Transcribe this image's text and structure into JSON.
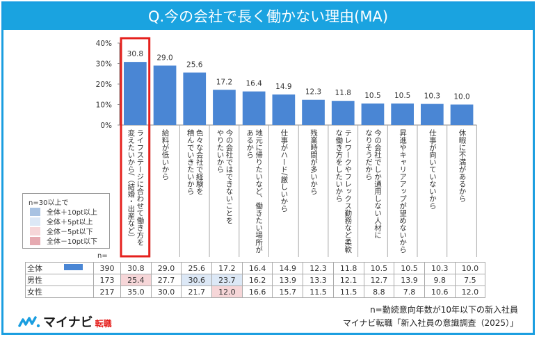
{
  "title": "Q.今の会社で長く働かない理由(MA)",
  "chart_data": {
    "type": "bar",
    "title": "Q.今の会社で長く働かない理由(MA)",
    "xlabel": "",
    "ylabel": "",
    "ylim": [
      0,
      40
    ],
    "yticks": [
      "0%",
      "10%",
      "20%",
      "30%",
      "40%"
    ],
    "ytick_values": [
      0,
      10,
      20,
      30,
      40
    ],
    "grid": false,
    "bar_color": "#4a86d4",
    "highlight_index": 0,
    "highlight_color": "#e5201d",
    "categories": [
      "ライフステージに合わせて働き方を変えたいから/（結婚・出産など）",
      "給料が低いから",
      "色々な会社で経験を積んでいきたいから",
      "今の会社ではできないことをやりたいから",
      "地元に帰りたいなど、働きたい場所があるから",
      "仕事がハード/厳しいから",
      "残業時間が多いから",
      "テレワークやフレックス勤務など柔軟な働き方をしたいから",
      "今の会社でしか通用しない人材になりそうだから",
      "昇進やキャリアアップが望めないから",
      "仕事が向いていないから",
      "休暇に不満があるから"
    ],
    "category_lines": [
      [
        "ライフステージに合わせて働き方を",
        "変えたいから/（結婚・出産など）"
      ],
      [
        "給料が低いから"
      ],
      [
        "色々な会社で経験を",
        "積んでいきたいから"
      ],
      [
        "今の会社ではできないことを",
        "やりたいから"
      ],
      [
        "地元に帰りたいなど、働きたい場所が",
        "あるから"
      ],
      [
        "仕事がハード/厳しいから"
      ],
      [
        "残業時間が多いから"
      ],
      [
        "テレワークやフレックス勤務など柔軟",
        "な働き方をしたいから"
      ],
      [
        "今の会社でしか通用しない人材に",
        "なりそうだから"
      ],
      [
        "昇進やキャリアアップが望めないから"
      ],
      [
        "仕事が向いていないから"
      ],
      [
        "休暇に不満があるから"
      ]
    ],
    "values": [
      30.8,
      29.0,
      25.6,
      17.2,
      16.4,
      14.9,
      12.3,
      11.8,
      10.5,
      10.5,
      10.3,
      10.0
    ],
    "data_labels": [
      "30.8",
      "29.0",
      "25.6",
      "17.2",
      "16.4",
      "14.9",
      "12.3",
      "11.8",
      "10.5",
      "10.5",
      "10.3",
      "10.0"
    ],
    "table": {
      "n_header": "n=",
      "rows": [
        {
          "label": "全体",
          "n": "390",
          "values": [
            "30.8",
            "29.0",
            "25.6",
            "17.2",
            "16.4",
            "14.9",
            "12.3",
            "11.8",
            "10.5",
            "10.5",
            "10.3",
            "10.0"
          ],
          "highlights": [
            "",
            "",
            "",
            "",
            "",
            "",
            "",
            "",
            "",
            "",
            "",
            ""
          ]
        },
        {
          "label": "男性",
          "n": "173",
          "values": [
            "25.4",
            "27.7",
            "30.6",
            "23.7",
            "16.2",
            "13.9",
            "13.3",
            "12.1",
            "12.7",
            "13.9",
            "9.8",
            "7.5"
          ],
          "highlights": [
            "minus5",
            "",
            "plus5",
            "plus5",
            "",
            "",
            "",
            "",
            "",
            "",
            "",
            ""
          ]
        },
        {
          "label": "女性",
          "n": "217",
          "values": [
            "35.0",
            "30.0",
            "21.7",
            "12.0",
            "16.6",
            "15.7",
            "11.5",
            "11.5",
            "8.8",
            "7.8",
            "10.6",
            "12.0"
          ],
          "highlights": [
            "",
            "",
            "",
            "minus5",
            "",
            "",
            "",
            "",
            "",
            "",
            "",
            ""
          ]
        }
      ]
    },
    "legend": {
      "title": "n=30以上で",
      "items": [
        {
          "label": "全体＋10pt以上",
          "color": "#a8c2e2"
        },
        {
          "label": "全体＋5pt以上",
          "color": "#dce8f6"
        },
        {
          "label": "全体－5pt以下",
          "color": "#f6d6d8"
        },
        {
          "label": "全体－10pt以下",
          "color": "#e6aab1"
        }
      ]
    }
  },
  "footer": {
    "note1": "n=勤続意向年数が10年以下の新入社員",
    "note2": "マイナビ転職「新入社員の意識調査（2025）」",
    "logo_brand": "マイナビ",
    "logo_sub": "転職"
  },
  "colors": {
    "frame": "#1a9ee0",
    "title_bg": "#1aa3e0",
    "bar": "#4a86d4",
    "highlight_box": "#e5201d",
    "plus5": "#dce8f6",
    "minus5": "#f6d6d8"
  }
}
